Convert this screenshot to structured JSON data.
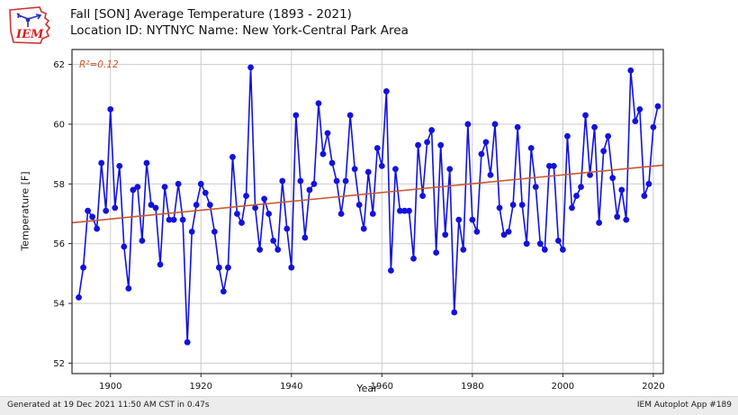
{
  "header": {
    "title_line1": "Fall [SON] Average Temperature (1893 - 2021)",
    "title_line2": "Location ID: NYTNYC Name: New York-Central Park Area",
    "logo_text": "IEM"
  },
  "footer": {
    "generated": "Generated at 19 Dec 2021 11:50 AM CST in 0.47s",
    "app": "IEM Autoplot App #189"
  },
  "chart_data": {
    "type": "line",
    "title": "Fall [SON] Average Temperature (1893 - 2021)",
    "subtitle": "Location ID: NYTNYC Name: New York-Central Park Area",
    "xlabel": "Year",
    "ylabel": "Temperature [F]",
    "grid": true,
    "xlim": [
      1891.5,
      2022.2
    ],
    "ylim": [
      51.65,
      62.5
    ],
    "xticks": [
      1900,
      1920,
      1940,
      1960,
      1980,
      2000,
      2020
    ],
    "yticks": [
      52,
      54,
      56,
      58,
      60,
      62
    ],
    "series_color": "#1212dd",
    "grid_color": "#cccccc",
    "spine_color": "#2b2b2b",
    "r_squared_label": "R²=0.12",
    "trend": {
      "x": [
        1891.5,
        2022.2
      ],
      "y": [
        56.7,
        58.63
      ],
      "color": "#c9582d"
    },
    "x": [
      1893,
      1894,
      1895,
      1896,
      1897,
      1898,
      1899,
      1900,
      1901,
      1902,
      1903,
      1904,
      1905,
      1906,
      1907,
      1908,
      1909,
      1910,
      1911,
      1912,
      1913,
      1914,
      1915,
      1916,
      1917,
      1918,
      1919,
      1920,
      1921,
      1922,
      1923,
      1924,
      1925,
      1926,
      1927,
      1928,
      1929,
      1930,
      1931,
      1932,
      1933,
      1934,
      1935,
      1936,
      1937,
      1938,
      1939,
      1940,
      1941,
      1942,
      1943,
      1944,
      1945,
      1946,
      1947,
      1948,
      1949,
      1950,
      1951,
      1952,
      1953,
      1954,
      1955,
      1956,
      1957,
      1958,
      1959,
      1960,
      1961,
      1962,
      1963,
      1964,
      1965,
      1966,
      1967,
      1968,
      1969,
      1970,
      1971,
      1972,
      1973,
      1974,
      1975,
      1976,
      1977,
      1978,
      1979,
      1980,
      1981,
      1982,
      1983,
      1984,
      1985,
      1986,
      1987,
      1988,
      1989,
      1990,
      1991,
      1992,
      1993,
      1994,
      1995,
      1996,
      1997,
      1998,
      1999,
      2000,
      2001,
      2002,
      2003,
      2004,
      2005,
      2006,
      2007,
      2008,
      2009,
      2010,
      2011,
      2012,
      2013,
      2014,
      2015,
      2016,
      2017,
      2018,
      2019,
      2020,
      2021
    ],
    "values": [
      54.2,
      55.2,
      57.1,
      56.9,
      56.5,
      58.7,
      57.1,
      60.5,
      57.2,
      58.6,
      55.9,
      54.5,
      57.8,
      57.9,
      56.1,
      58.7,
      57.3,
      57.2,
      55.3,
      57.9,
      56.8,
      56.8,
      58.0,
      56.8,
      52.7,
      56.4,
      57.3,
      58.0,
      57.7,
      57.3,
      56.4,
      55.2,
      54.4,
      55.2,
      58.9,
      57.0,
      56.7,
      57.6,
      61.9,
      57.2,
      55.8,
      57.5,
      57.0,
      56.1,
      55.8,
      58.1,
      56.5,
      55.2,
      60.3,
      58.1,
      56.2,
      57.8,
      58.0,
      60.7,
      59.0,
      59.7,
      58.7,
      58.1,
      57.0,
      58.1,
      60.3,
      58.5,
      57.3,
      56.5,
      58.4,
      57.0,
      59.2,
      58.6,
      61.1,
      55.1,
      58.5,
      57.1,
      57.1,
      57.1,
      55.5,
      59.3,
      57.6,
      59.4,
      59.8,
      55.7,
      59.3,
      56.3,
      58.5,
      53.7,
      56.8,
      55.8,
      60.0,
      56.8,
      56.4,
      59.0,
      59.4,
      58.3,
      60.0,
      57.2,
      56.3,
      56.4,
      57.3,
      59.9,
      57.3,
      56.0,
      59.2,
      57.9,
      56.0,
      55.8,
      58.6,
      58.6,
      56.1,
      55.8,
      59.6,
      57.2,
      57.6,
      57.9,
      60.3,
      58.3,
      59.9,
      56.7,
      59.1,
      59.6,
      58.2,
      56.9,
      57.8,
      56.8,
      61.8,
      60.1,
      60.5,
      57.6,
      58.0,
      59.9,
      60.6
    ]
  }
}
